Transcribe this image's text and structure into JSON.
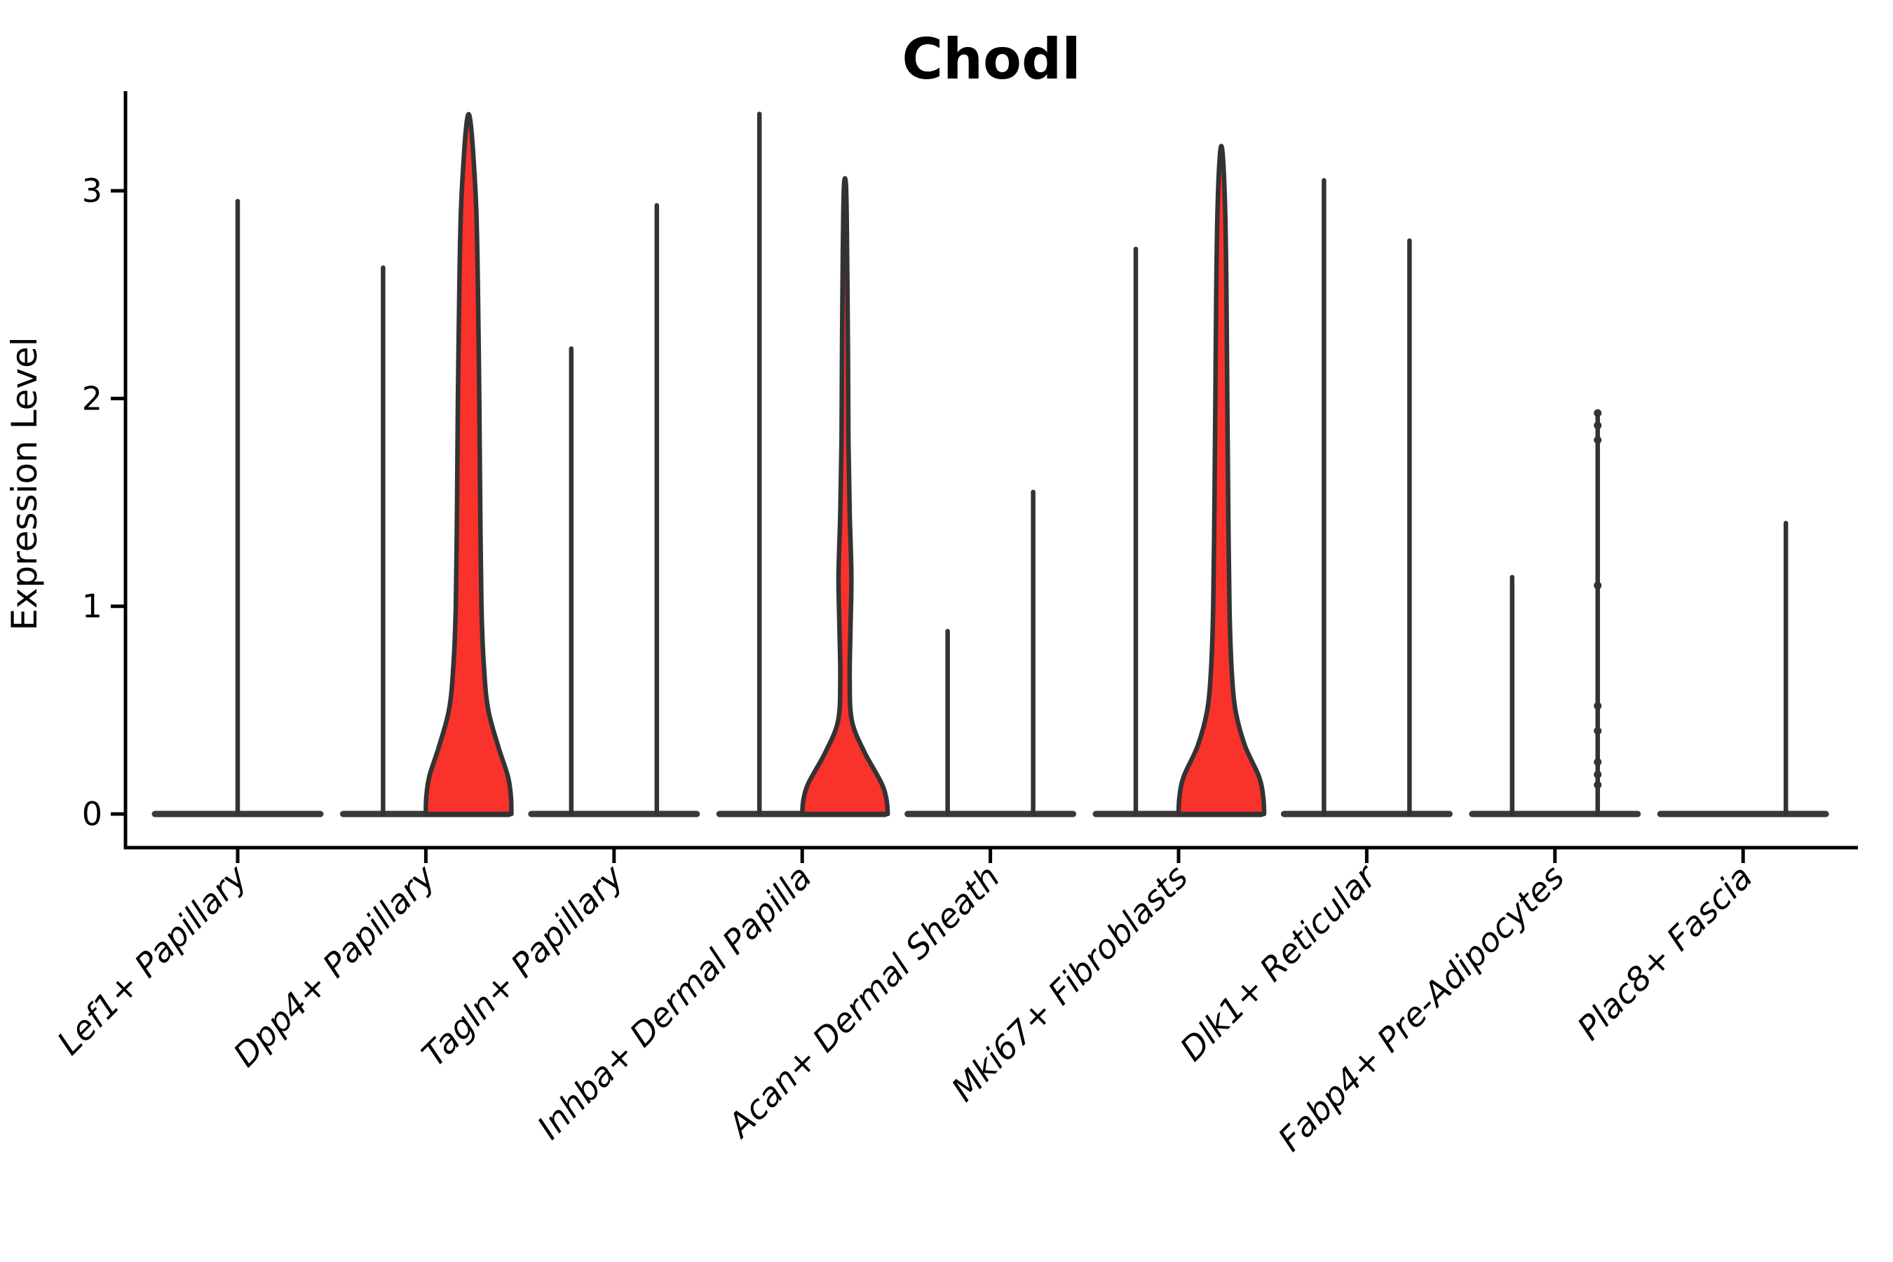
{
  "chart_data": {
    "type": "violin",
    "title": "Chodl",
    "xlabel": "",
    "ylabel": "Expression Level",
    "ylim": [
      -0.17,
      3.48
    ],
    "yticks": [
      0,
      1,
      2,
      3
    ],
    "grid": false,
    "legend": "none",
    "colors": {
      "highlight_fill": "#F9322C",
      "violin_outline": "#333333",
      "baseline": "#3A3A3A",
      "axis": "#000000",
      "point": "#333333"
    },
    "categories": [
      "Lef1+ Papillary",
      "Dpp4+ Papillary",
      "Tagln+ Papillary",
      "Inhba+ Dermal Papilla",
      "Acan+ Dermal Sheath",
      "Mki67+ Fibroblasts",
      "Dlk1+ Reticular",
      "Fabp4+ Pre-Adipocytes",
      "Plac8+ Fascia"
    ],
    "violins": [
      {
        "category": "Lef1+ Papillary",
        "groups": [
          {
            "side": "center",
            "shape": "spike",
            "max": 2.95,
            "filled": false
          }
        ]
      },
      {
        "category": "Dpp4+ Papillary",
        "groups": [
          {
            "side": "left",
            "shape": "spike",
            "max": 2.63,
            "filled": false
          },
          {
            "side": "right",
            "shape": "fat",
            "max": 3.35,
            "filled": true
          }
        ]
      },
      {
        "category": "Tagln+ Papillary",
        "groups": [
          {
            "side": "left",
            "shape": "spike",
            "max": 2.24,
            "filled": false
          },
          {
            "side": "right",
            "shape": "spike",
            "max": 2.93,
            "filled": false
          }
        ]
      },
      {
        "category": "Inhba+ Dermal Papilla",
        "groups": [
          {
            "side": "left",
            "shape": "spike",
            "max": 3.37,
            "filled": false
          },
          {
            "side": "right",
            "shape": "thin",
            "max": 3.02,
            "filled": true
          }
        ]
      },
      {
        "category": "Acan+ Dermal Sheath",
        "groups": [
          {
            "side": "left",
            "shape": "spike",
            "max": 0.88,
            "filled": false
          },
          {
            "side": "right",
            "shape": "spike",
            "max": 1.55,
            "filled": false
          }
        ]
      },
      {
        "category": "Mki67+ Fibroblasts",
        "groups": [
          {
            "side": "left",
            "shape": "spike",
            "max": 2.72,
            "filled": false
          },
          {
            "side": "right",
            "shape": "med",
            "max": 3.18,
            "filled": true
          }
        ]
      },
      {
        "category": "Dlk1+ Reticular",
        "groups": [
          {
            "side": "left",
            "shape": "spike",
            "max": 3.05,
            "filled": false
          },
          {
            "side": "right",
            "shape": "spike",
            "max": 2.76,
            "filled": false
          }
        ]
      },
      {
        "category": "Fabp4+ Pre-Adipocytes",
        "groups": [
          {
            "side": "left",
            "shape": "spike",
            "max": 1.14,
            "filled": false
          },
          {
            "side": "right",
            "shape": "spike",
            "max": 1.93,
            "filled": false,
            "dots": [
              1.93,
              1.87,
              1.8,
              1.1,
              0.52,
              0.4,
              0.25,
              0.19,
              0.14
            ]
          }
        ]
      },
      {
        "category": "Plac8+ Fascia",
        "groups": [
          {
            "side": "left",
            "shape": "flat",
            "max": 0.0,
            "filled": false
          },
          {
            "side": "right",
            "shape": "spike",
            "max": 1.4,
            "filled": false
          }
        ]
      }
    ],
    "profiles": {
      "fat": [
        [
          0.0,
          1.0
        ],
        [
          0.08,
          0.99
        ],
        [
          0.18,
          0.92
        ],
        [
          0.32,
          0.7
        ],
        [
          0.5,
          0.46
        ],
        [
          0.7,
          0.36
        ],
        [
          1.0,
          0.3
        ],
        [
          1.5,
          0.27
        ],
        [
          2.0,
          0.25
        ],
        [
          2.5,
          0.22
        ],
        [
          2.9,
          0.18
        ],
        [
          3.2,
          0.1
        ],
        [
          3.35,
          0.03
        ]
      ],
      "thin": [
        [
          0.0,
          1.0
        ],
        [
          0.07,
          0.97
        ],
        [
          0.15,
          0.85
        ],
        [
          0.3,
          0.45
        ],
        [
          0.45,
          0.16
        ],
        [
          0.65,
          0.11
        ],
        [
          0.9,
          0.13
        ],
        [
          1.15,
          0.15
        ],
        [
          1.45,
          0.11
        ],
        [
          1.8,
          0.08
        ],
        [
          2.2,
          0.07
        ],
        [
          2.7,
          0.05
        ],
        [
          3.02,
          0.025
        ]
      ],
      "med": [
        [
          0.0,
          1.0
        ],
        [
          0.08,
          0.98
        ],
        [
          0.18,
          0.88
        ],
        [
          0.33,
          0.55
        ],
        [
          0.5,
          0.33
        ],
        [
          0.7,
          0.24
        ],
        [
          1.0,
          0.19
        ],
        [
          1.5,
          0.16
        ],
        [
          2.0,
          0.14
        ],
        [
          2.5,
          0.12
        ],
        [
          2.9,
          0.09
        ],
        [
          3.18,
          0.03
        ]
      ]
    }
  }
}
